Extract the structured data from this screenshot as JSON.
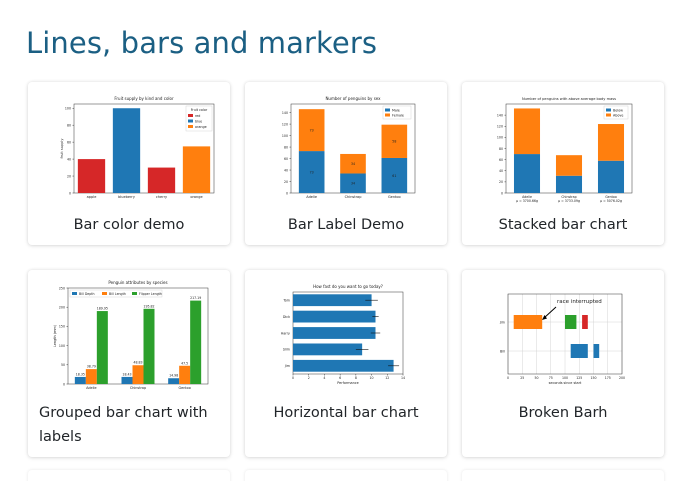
{
  "page": {
    "title": "Lines, bars and markers"
  },
  "cards": [
    {
      "caption": "Bar color demo"
    },
    {
      "caption": "Bar Label Demo"
    },
    {
      "caption": "Stacked bar chart"
    },
    {
      "caption": "Grouped bar chart with labels"
    },
    {
      "caption": "Horizontal bar chart"
    },
    {
      "caption": "Broken Barh"
    }
  ],
  "colors": {
    "title": "#1b5f83",
    "blue": "#1f77b4",
    "orange": "#ff7f0e",
    "green": "#2ca02c",
    "red": "#d62728"
  },
  "chart_data": [
    {
      "type": "bar",
      "title": "Fruit supply by kind and color",
      "ylabel": "fruit supply",
      "categories": [
        "apple",
        "blueberry",
        "cherry",
        "orange"
      ],
      "values": [
        40,
        100,
        30,
        55
      ],
      "bar_colors": [
        "#d62728",
        "#1f77b4",
        "#d62728",
        "#ff7f0e"
      ],
      "ylim": [
        0,
        105
      ],
      "yticks": [
        0,
        20,
        40,
        60,
        80,
        100
      ],
      "legend_title": "Fruit color",
      "legend": [
        {
          "label": "red",
          "color": "#d62728"
        },
        {
          "label": "blue",
          "color": "#1f77b4"
        },
        {
          "label": "orange",
          "color": "#ff7f0e"
        }
      ],
      "legend_position": "top-right"
    },
    {
      "type": "bar",
      "title": "Number of penguins by sex",
      "categories": [
        "Adelie",
        "Chinstrap",
        "Gentoo"
      ],
      "series": [
        {
          "name": "Male",
          "values": [
            73,
            34,
            61
          ],
          "color": "#1f77b4"
        },
        {
          "name": "Female",
          "values": [
            73,
            34,
            58
          ],
          "color": "#ff7f0e"
        }
      ],
      "stacked": true,
      "ylim": [
        0,
        155
      ],
      "yticks": [
        0,
        20,
        40,
        60,
        80,
        100,
        120,
        140
      ],
      "legend_position": "top-right"
    },
    {
      "type": "bar",
      "title": "Number of penguins with above average body mass",
      "categories": [
        "Adelie\nμ = 3700.66g",
        "Chinstrap\nμ = 3733.09g",
        "Gentoo\nμ = 5076.02g"
      ],
      "series": [
        {
          "name": "Below",
          "values": [
            70,
            31,
            58
          ],
          "color": "#1f77b4"
        },
        {
          "name": "Above",
          "values": [
            82,
            37,
            66
          ],
          "color": "#ff7f0e"
        }
      ],
      "stacked": true,
      "ylim": [
        0,
        160
      ],
      "yticks": [
        0,
        20,
        40,
        60,
        80,
        100,
        120,
        140
      ],
      "legend_position": "top-right"
    },
    {
      "type": "bar",
      "title": "Penguin attributes by species",
      "ylabel": "Length (mm)",
      "categories": [
        "Adelie",
        "Chinstrap",
        "Gentoo"
      ],
      "series": [
        {
          "name": "Bill Depth",
          "values": [
            18.35,
            18.43,
            14.98
          ],
          "color": "#1f77b4"
        },
        {
          "name": "Bill Length",
          "values": [
            38.79,
            48.83,
            47.5
          ],
          "color": "#ff7f0e"
        },
        {
          "name": "Flipper Length",
          "values": [
            189.95,
            195.82,
            217.19
          ],
          "color": "#2ca02c"
        }
      ],
      "ylim": [
        0,
        250
      ],
      "yticks": [
        0,
        50,
        100,
        150,
        200,
        250
      ],
      "legend_position": "top-left"
    },
    {
      "type": "bar",
      "orientation": "horizontal",
      "title": "How fast do you want to go today?",
      "xlabel": "Performance",
      "categories": [
        "Tom",
        "Dick",
        "Harry",
        "Slim",
        "Jim"
      ],
      "values": [
        10,
        10.5,
        10.5,
        8.8,
        12.8
      ],
      "errors": [
        0.8,
        0.4,
        0.6,
        0.8,
        0.7
      ],
      "xlim": [
        0,
        14
      ],
      "xticks": [
        0,
        2,
        4,
        6,
        8,
        10,
        12,
        14
      ]
    },
    {
      "type": "bar",
      "orientation": "broken-horizontal",
      "xlabel": "seconds since start",
      "yticks": [
        "Bill",
        "Jim"
      ],
      "rows": [
        {
          "label": "Jim",
          "segments": [
            {
              "start": 10,
              "width": 50,
              "color": "#ff7f0e"
            },
            {
              "start": 100,
              "width": 20,
              "color": "#2ca02c"
            },
            {
              "start": 130,
              "width": 10,
              "color": "#d62728"
            }
          ]
        },
        {
          "label": "Bill",
          "segments": [
            {
              "start": 110,
              "width": 30,
              "color": "#1f77b4"
            },
            {
              "start": 150,
              "width": 10,
              "color": "#1f77b4"
            }
          ]
        }
      ],
      "annotation": "race interrupted",
      "xlim": [
        0,
        200
      ],
      "xticks": [
        0,
        25,
        50,
        75,
        100,
        125,
        150,
        175,
        200
      ],
      "grid": true
    }
  ]
}
